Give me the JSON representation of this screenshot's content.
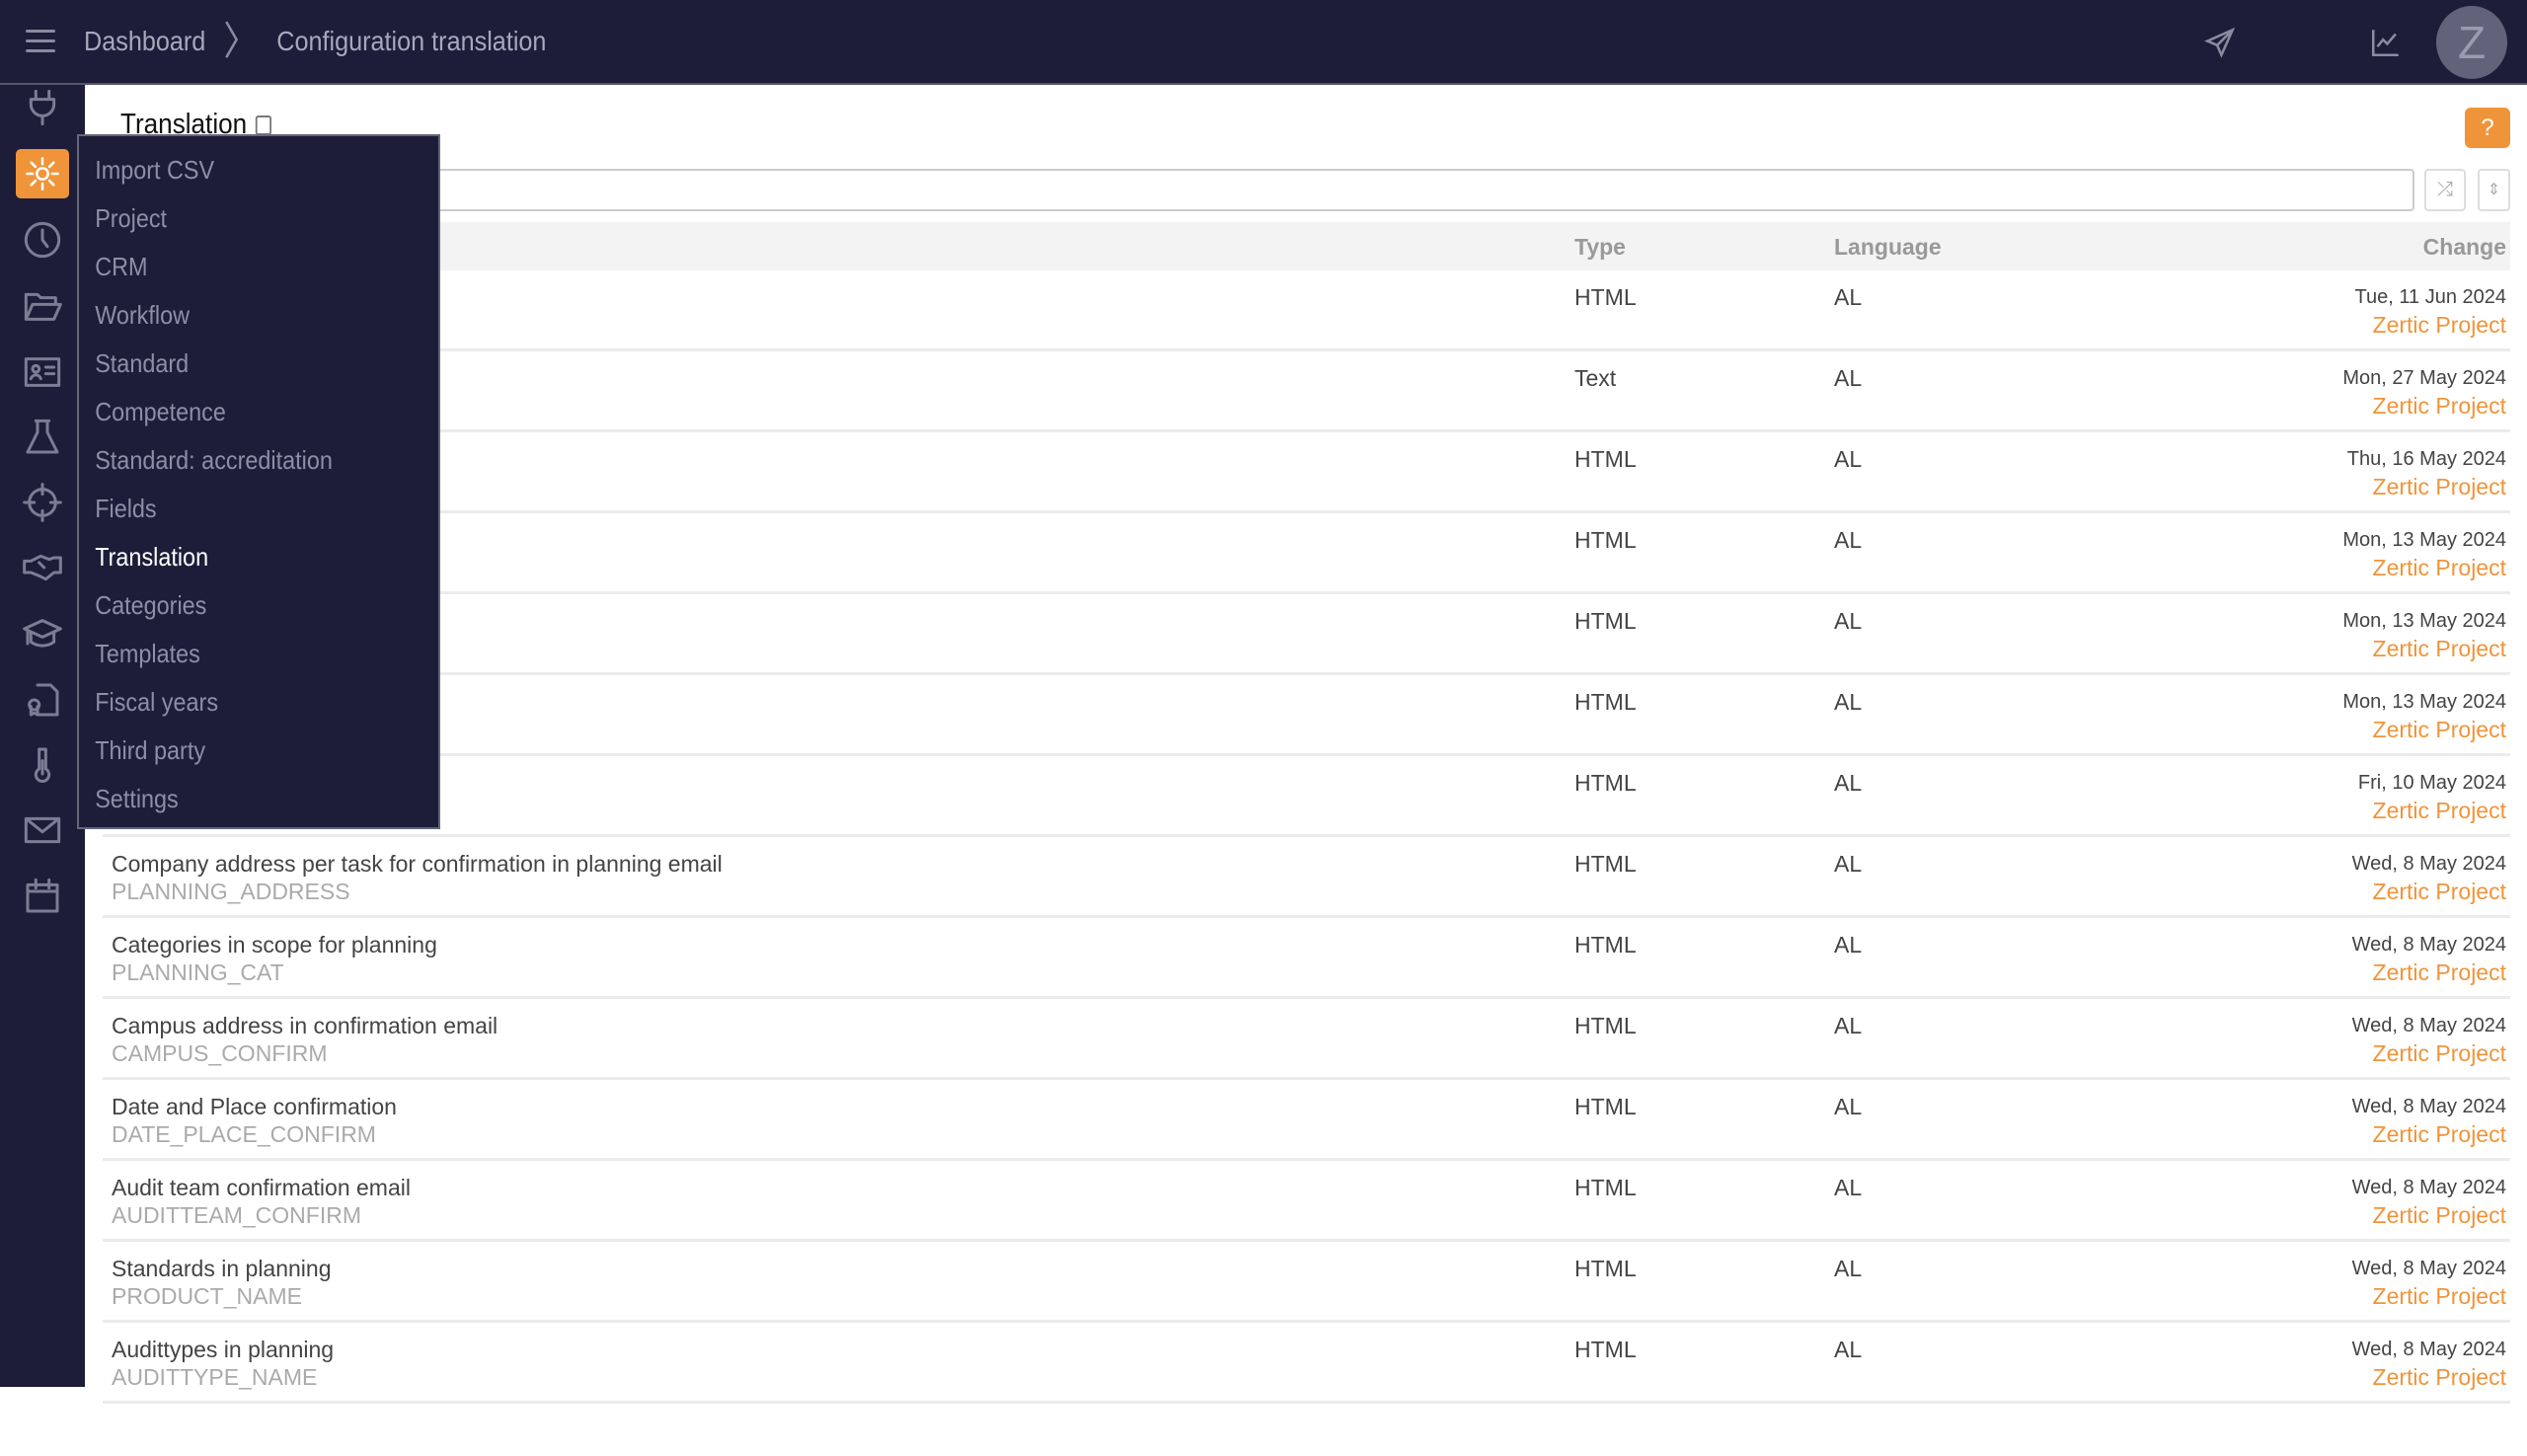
{
  "header": {
    "breadcrumb": [
      "Dashboard",
      "Configuration translation"
    ],
    "avatar_letter": "Z"
  },
  "page": {
    "title": "Translation",
    "help_label": "?",
    "search_placeholder": ""
  },
  "colors": {
    "brand_dark": "#1d1d3a",
    "accent": "#f0943a"
  },
  "sidebar": {
    "icons": [
      "plug-icon",
      "gear-icon",
      "clock-icon",
      "folder-open-icon",
      "id-card-icon",
      "flask-icon",
      "crosshair-icon",
      "handshake-icon",
      "graduation-cap-icon",
      "certificate-file-icon",
      "thermometer-icon",
      "envelope-icon",
      "calendar-icon"
    ],
    "active": "gear-icon",
    "logo": "Z"
  },
  "menu": {
    "items": [
      "Import CSV",
      "Project",
      "CRM",
      "Workflow",
      "Standard",
      "Competence",
      "Standard: accreditation",
      "Fields",
      "Translation",
      "Categories",
      "Templates",
      "Fiscal years",
      "Third party",
      "Settings"
    ],
    "active": "Translation"
  },
  "table": {
    "headers": {
      "type": "Type",
      "language": "Language",
      "change": "Change"
    },
    "rows": [
      {
        "name": "",
        "key": "",
        "type": "HTML",
        "language": "AL",
        "date": "Tue, 11 Jun 2024",
        "user": "Zertic Project"
      },
      {
        "name": "",
        "key": "",
        "type": "Text",
        "language": "AL",
        "date": "Mon, 27 May 2024",
        "user": "Zertic Project"
      },
      {
        "name": "",
        "key": "",
        "type": "HTML",
        "language": "AL",
        "date": "Thu, 16 May 2024",
        "user": "Zertic Project"
      },
      {
        "name": "",
        "key": "",
        "type": "HTML",
        "language": "AL",
        "date": "Mon, 13 May 2024",
        "user": "Zertic Project"
      },
      {
        "name": "",
        "key": "",
        "type": "HTML",
        "language": "AL",
        "date": "Mon, 13 May 2024",
        "user": "Zertic Project"
      },
      {
        "name": "",
        "key": "",
        "type": "HTML",
        "language": "AL",
        "date": "Mon, 13 May 2024",
        "user": "Zertic Project"
      },
      {
        "name": "",
        "key": "",
        "type": "HTML",
        "language": "AL",
        "date": "Fri, 10 May 2024",
        "user": "Zertic Project"
      },
      {
        "name": "Company address per task for confirmation in planning email",
        "key": "PLANNING_ADDRESS",
        "type": "HTML",
        "language": "AL",
        "date": "Wed, 8 May 2024",
        "user": "Zertic Project"
      },
      {
        "name": "Categories in scope for planning",
        "key": "PLANNING_CAT",
        "type": "HTML",
        "language": "AL",
        "date": "Wed, 8 May 2024",
        "user": "Zertic Project"
      },
      {
        "name": "Campus address in confirmation email",
        "key": "CAMPUS_CONFIRM",
        "type": "HTML",
        "language": "AL",
        "date": "Wed, 8 May 2024",
        "user": "Zertic Project"
      },
      {
        "name": "Date and Place confirmation",
        "key": "DATE_PLACE_CONFIRM",
        "type": "HTML",
        "language": "AL",
        "date": "Wed, 8 May 2024",
        "user": "Zertic Project"
      },
      {
        "name": "Audit team confirmation email",
        "key": "AUDITTEAM_CONFIRM",
        "type": "HTML",
        "language": "AL",
        "date": "Wed, 8 May 2024",
        "user": "Zertic Project"
      },
      {
        "name": "Standards in planning",
        "key": "PRODUCT_NAME",
        "type": "HTML",
        "language": "AL",
        "date": "Wed, 8 May 2024",
        "user": "Zertic Project"
      },
      {
        "name": "Audittypes in planning",
        "key": "AUDITTYPE_NAME",
        "type": "HTML",
        "language": "AL",
        "date": "Wed, 8 May 2024",
        "user": "Zertic Project"
      }
    ]
  }
}
